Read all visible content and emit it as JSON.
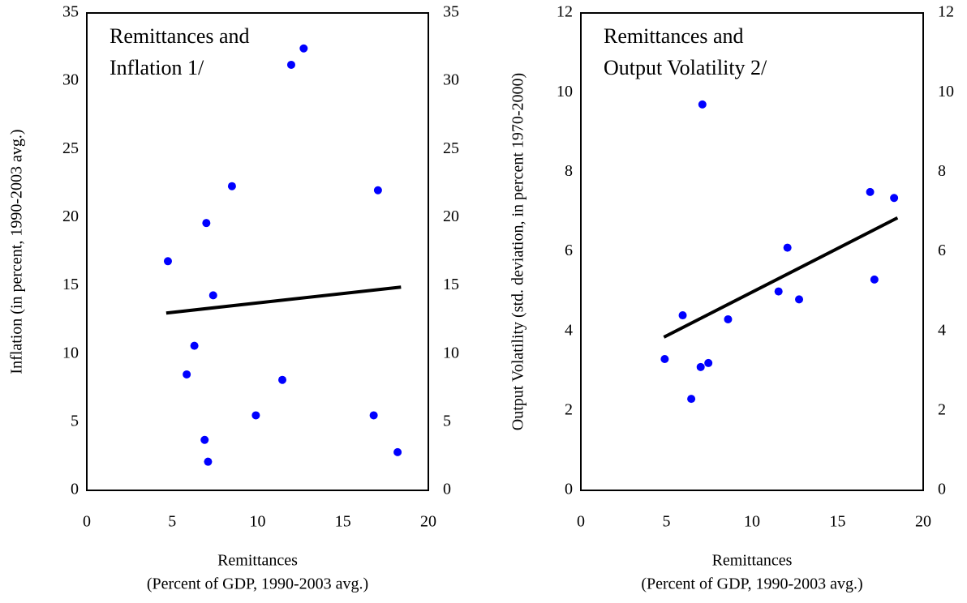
{
  "chart_data": [
    {
      "type": "scatter",
      "title_lines": [
        "Remittances and",
        "Inflation 1/"
      ],
      "ylabel": "Inflation (in percent, 1990-2003 avg.)",
      "xlabel_lines": [
        "Remittances",
        "(Percent of GDP, 1990-2003 avg.)"
      ],
      "xlim": [
        0,
        20
      ],
      "xticks": [
        0,
        5,
        10,
        15,
        20
      ],
      "ylim": [
        0,
        35
      ],
      "yticks": [
        0,
        5,
        10,
        15,
        20,
        25,
        30,
        35
      ],
      "y2lim": [
        0,
        35
      ],
      "y2ticks": [
        0,
        5,
        10,
        15,
        20,
        25,
        30,
        35
      ],
      "color": "#0000ff",
      "x": [
        4.75,
        8.5,
        7.0,
        7.4,
        6.3,
        5.85,
        6.9,
        7.1,
        9.9,
        11.45,
        11.97,
        12.7,
        17.05,
        16.8,
        18.2
      ],
      "values": [
        16.8,
        22.3,
        19.6,
        14.3,
        10.6,
        8.5,
        3.7,
        2.1,
        5.5,
        8.1,
        31.2,
        32.4,
        22.0,
        5.5,
        2.8
      ],
      "trend": {
        "color": "#000000",
        "x": [
          4.65,
          18.4
        ],
        "values": [
          13.0,
          14.9
        ]
      }
    },
    {
      "type": "scatter",
      "title_lines": [
        "Remittances and",
        "Output Volatility 2/"
      ],
      "ylabel": "Output Volatility (std. deviation, in percent 1970-2000)",
      "xlabel_lines": [
        "Remittances",
        "(Percent of GDP, 1990-2003 avg.)"
      ],
      "xlim": [
        0,
        20
      ],
      "xticks": [
        0,
        5,
        10,
        15,
        20
      ],
      "ylim": [
        0,
        12
      ],
      "yticks": [
        0,
        2,
        4,
        6,
        8,
        10,
        12
      ],
      "y2lim": [
        0,
        12
      ],
      "y2ticks": [
        0,
        2,
        4,
        6,
        8,
        10,
        12
      ],
      "color": "#0000ff",
      "x": [
        4.9,
        5.95,
        6.45,
        7.0,
        7.1,
        7.45,
        8.6,
        11.55,
        12.07,
        12.75,
        16.9,
        17.15,
        18.3
      ],
      "values": [
        3.3,
        4.4,
        2.3,
        3.1,
        9.7,
        3.2,
        4.3,
        5.0,
        6.1,
        4.8,
        7.5,
        5.3,
        7.35
      ],
      "trend": {
        "color": "#000000",
        "x": [
          4.85,
          18.5
        ],
        "values": [
          3.85,
          6.85
        ]
      }
    }
  ]
}
